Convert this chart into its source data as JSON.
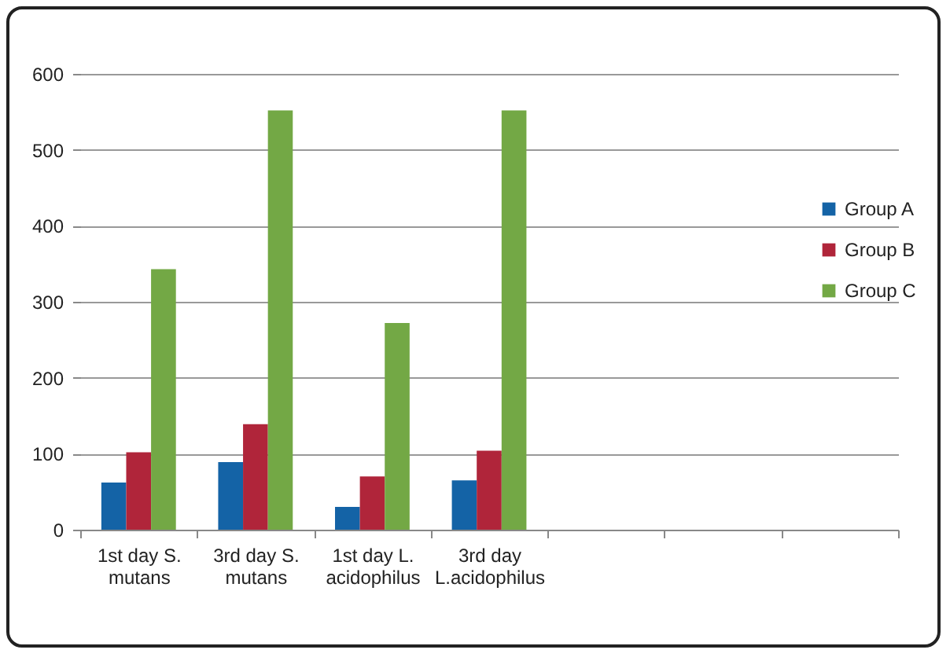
{
  "chart_data": {
    "type": "bar",
    "categories": [
      "1st day S. mutans",
      "3rd day S. mutans",
      "1st day L. acidophilus",
      "3rd day L.acidophilus",
      null,
      null,
      null
    ],
    "series": [
      {
        "name": "Group A",
        "color": "#1463a6",
        "values": [
          62,
          89,
          30,
          65,
          null,
          null,
          null
        ]
      },
      {
        "name": "Group B",
        "color": "#b0253a",
        "values": [
          102,
          139,
          70,
          104,
          null,
          null,
          null
        ]
      },
      {
        "name": "Group C",
        "color": "#73a845",
        "values": [
          343,
          552,
          272,
          552,
          null,
          null,
          null
        ]
      }
    ],
    "ylim": [
      0,
      600
    ],
    "yticks": [
      0,
      100,
      200,
      300,
      400,
      500,
      600
    ],
    "grid": "y",
    "legend": "right"
  }
}
